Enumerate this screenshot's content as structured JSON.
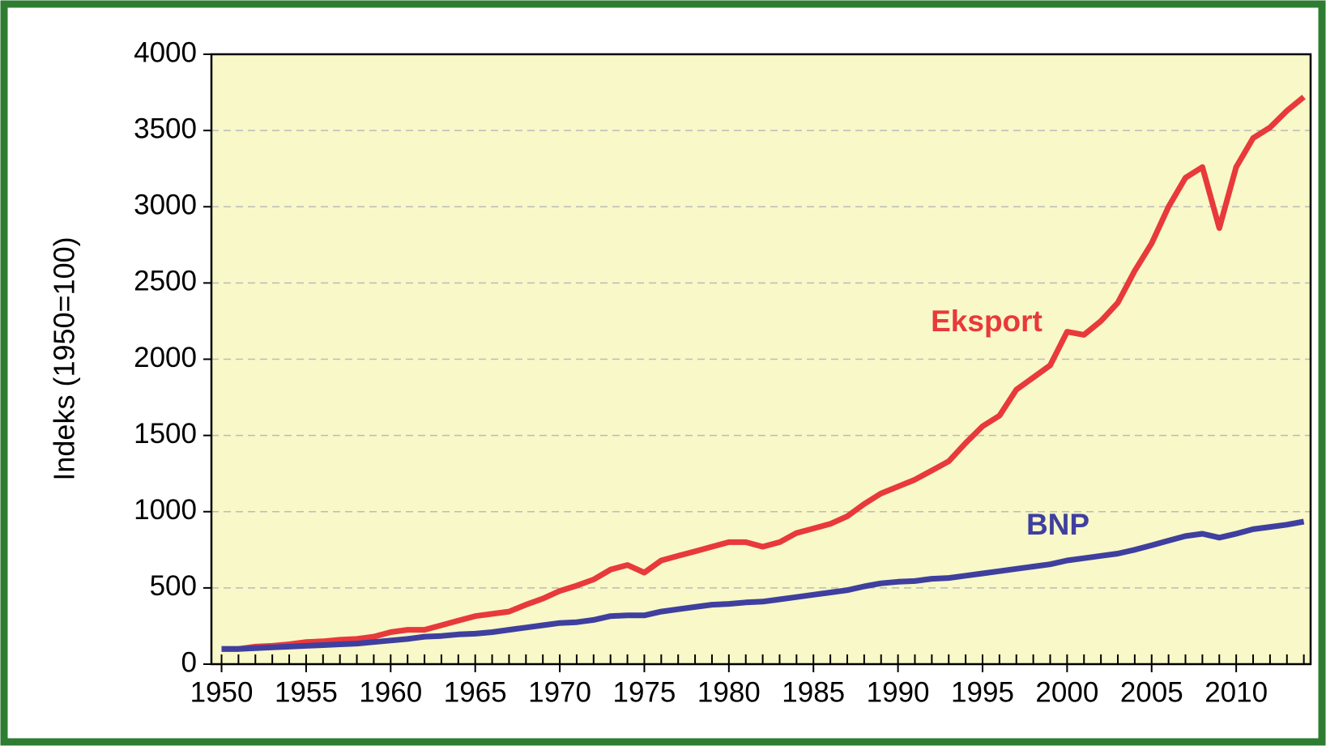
{
  "chart_data": {
    "type": "line",
    "y_label": "Indeks (1950=100)",
    "x": [
      1950,
      1951,
      1952,
      1953,
      1954,
      1955,
      1956,
      1957,
      1958,
      1959,
      1960,
      1961,
      1962,
      1963,
      1964,
      1965,
      1966,
      1967,
      1968,
      1969,
      1970,
      1971,
      1972,
      1973,
      1974,
      1975,
      1976,
      1977,
      1978,
      1979,
      1980,
      1981,
      1982,
      1983,
      1984,
      1985,
      1986,
      1987,
      1988,
      1989,
      1990,
      1991,
      1992,
      1993,
      1994,
      1995,
      1996,
      1997,
      1998,
      1999,
      2000,
      2001,
      2002,
      2003,
      2004,
      2005,
      2006,
      2007,
      2008,
      2009,
      2010,
      2011,
      2012,
      2013,
      2014
    ],
    "series": [
      {
        "name": "Eksport",
        "color": "#e8393b",
        "values": [
          100,
          100,
          115,
          120,
          130,
          145,
          150,
          160,
          165,
          180,
          210,
          225,
          225,
          255,
          285,
          315,
          330,
          345,
          390,
          430,
          480,
          515,
          555,
          620,
          650,
          600,
          680,
          710,
          740,
          770,
          800,
          800,
          770,
          800,
          860,
          890,
          920,
          970,
          1050,
          1120,
          1165,
          1210,
          1270,
          1330,
          1450,
          1560,
          1630,
          1800,
          1880,
          1960,
          2180,
          2160,
          2250,
          2370,
          2580,
          2760,
          3000,
          3190,
          3260,
          2860,
          3260,
          3450,
          3520,
          3630,
          3720
        ]
      },
      {
        "name": "BNP",
        "color": "#3f3f9f",
        "values": [
          100,
          100,
          105,
          110,
          115,
          120,
          125,
          130,
          135,
          145,
          155,
          165,
          180,
          185,
          195,
          200,
          210,
          225,
          240,
          255,
          270,
          275,
          290,
          315,
          320,
          320,
          345,
          360,
          375,
          390,
          395,
          405,
          410,
          425,
          440,
          455,
          470,
          485,
          510,
          530,
          540,
          545,
          560,
          565,
          580,
          595,
          610,
          625,
          640,
          655,
          680,
          695,
          710,
          725,
          750,
          780,
          810,
          840,
          855,
          830,
          855,
          885,
          900,
          915,
          935
        ]
      }
    ],
    "xlim": [
      1949.4,
      2014.4
    ],
    "xticks": [
      1950,
      1955,
      1960,
      1965,
      1970,
      1975,
      1980,
      1985,
      1990,
      1995,
      2000,
      2005,
      2010
    ],
    "ylim": [
      0,
      4000
    ],
    "yticks": [
      0,
      500,
      1000,
      1500,
      2000,
      2500,
      3000,
      3500,
      4000
    ],
    "grid": true,
    "plot_background": "#f8f8c8"
  }
}
